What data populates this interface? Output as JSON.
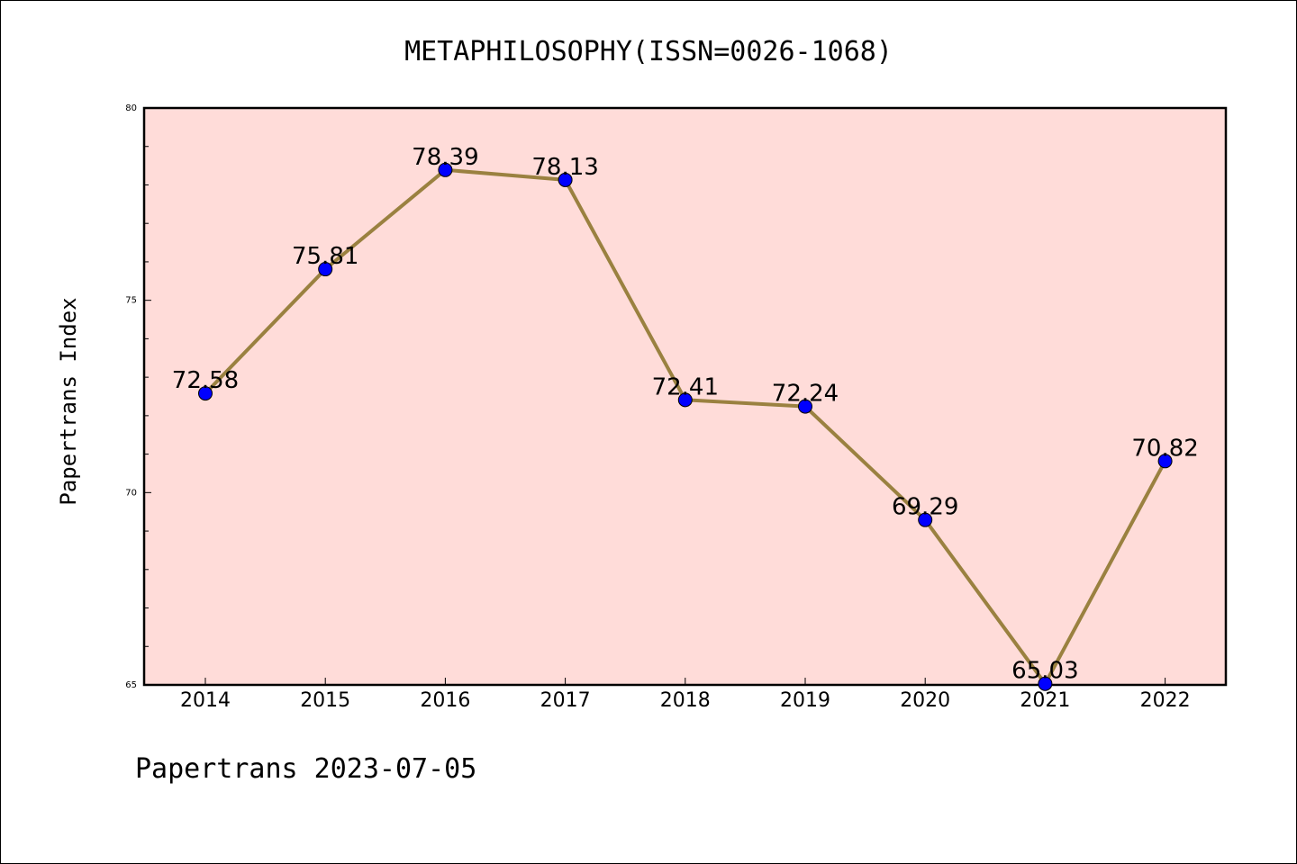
{
  "chart_data": {
    "type": "line",
    "title": "METAPHILOSOPHY(ISSN=0026-1068)",
    "ylabel": "Papertrans Index",
    "xlabel": "",
    "categories": [
      "2014",
      "2015",
      "2016",
      "2017",
      "2018",
      "2019",
      "2020",
      "2021",
      "2022"
    ],
    "series": [
      {
        "values": [
          72.58,
          75.81,
          78.39,
          78.13,
          72.41,
          72.24,
          69.29,
          65.03,
          70.82
        ],
        "labels": [
          "72.58",
          "75.81",
          "78.39",
          "78.13",
          "72.41",
          "72.24",
          "69.29",
          "65.03",
          "70.82"
        ]
      }
    ],
    "ylim": [
      65,
      80
    ],
    "yticks": [
      65,
      70,
      75,
      80
    ],
    "ytick_labels": [
      "65",
      "70",
      "75",
      "80"
    ],
    "grid": false,
    "colors": {
      "plot_background": "#ffdcd9",
      "line": "#9a8140",
      "marker": "#0000ff"
    }
  },
  "footer": {
    "text": "Papertrans 2023-07-05"
  }
}
